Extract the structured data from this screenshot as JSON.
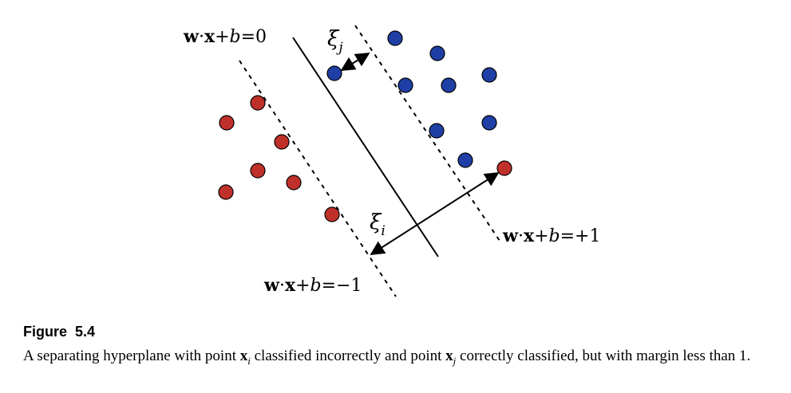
{
  "figure": {
    "labels": {
      "hyperplane": {
        "w": "w",
        "dot": "·",
        "x": "x",
        "plus": "+",
        "b": "b",
        "rhs": "=0"
      },
      "margin_pos": {
        "w": "w",
        "dot": "·",
        "x": "x",
        "plus": "+",
        "b": "b",
        "rhs": "=+1"
      },
      "margin_neg": {
        "w": "w",
        "dot": "·",
        "x": "x",
        "plus": "+",
        "b": "b",
        "rhs": "=−1"
      },
      "xi_j": {
        "symbol": "ξ",
        "sub": "j"
      },
      "xi_i": {
        "symbol": "ξ",
        "sub": "i"
      }
    },
    "colors": {
      "class_pos": "#1f3fa6",
      "class_neg": "#c0302a",
      "line": "#000000"
    }
  },
  "caption": {
    "title": "Figure  5.4",
    "part1": "A separating hyperplane with point ",
    "xi_symbol": "x",
    "xi_sub": "i",
    "part2": " classified incorrectly and point ",
    "xj_symbol": "x",
    "xj_sub": "j",
    "part3": " correctly classified, but with margin less than 1."
  }
}
